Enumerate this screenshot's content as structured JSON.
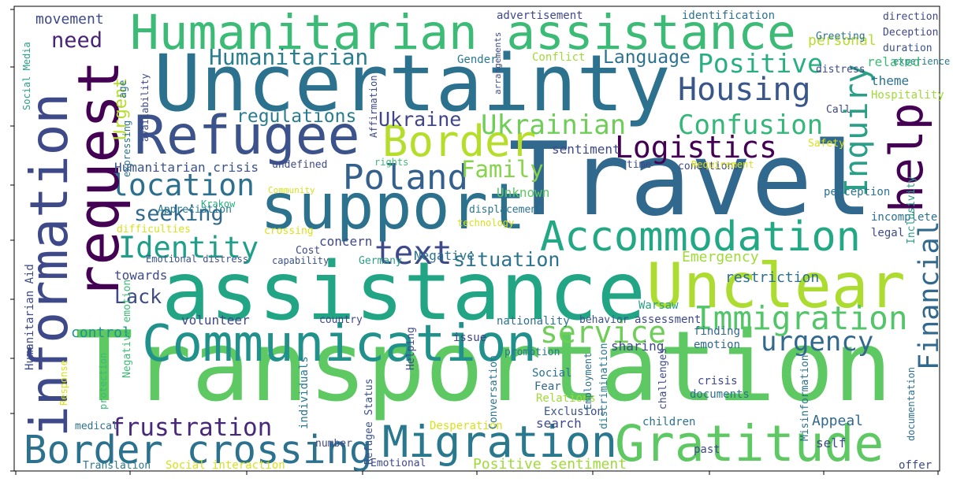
{
  "chart_data": {
    "type": "wordcloud",
    "words": [
      {
        "text": "Uncertainty",
        "color": "#2c728e"
      },
      {
        "text": "Transportation",
        "color": "#5ec962"
      },
      {
        "text": "assistance",
        "color": "#21a585"
      },
      {
        "text": "Travel",
        "color": "#31688e"
      },
      {
        "text": "Humanitarian assistance",
        "color": "#3bbb75"
      },
      {
        "text": "Refugee",
        "color": "#3b528b"
      },
      {
        "text": "support",
        "color": "#2c728e"
      },
      {
        "text": "Gratitude",
        "color": "#5ec962"
      },
      {
        "text": "Unclear",
        "color": "#addc30"
      },
      {
        "text": "Communication",
        "color": "#21918c"
      },
      {
        "text": "Accommodation",
        "color": "#22a884"
      },
      {
        "text": "Migration",
        "color": "#2a788e"
      },
      {
        "text": "Border crossing",
        "color": "#2c728e"
      },
      {
        "text": "Immigration",
        "color": "#52c569"
      },
      {
        "text": "Border",
        "color": "#b5de2b"
      },
      {
        "text": "Poland",
        "color": "#34608d"
      },
      {
        "text": "location",
        "color": "#2d708e"
      },
      {
        "text": "Identity",
        "color": "#1f9e89"
      },
      {
        "text": "text",
        "color": "#3e4989"
      },
      {
        "text": "Logistics",
        "color": "#440154"
      },
      {
        "text": "Confusion",
        "color": "#35b779"
      },
      {
        "text": "Housing",
        "color": "#39568c"
      },
      {
        "text": "Positive",
        "color": "#29af7f"
      },
      {
        "text": "Ukrainian",
        "color": "#6ece58"
      },
      {
        "text": "service",
        "color": "#6ece58"
      },
      {
        "text": "urgency",
        "color": "#31688e"
      },
      {
        "text": "frustration",
        "color": "#482878"
      },
      {
        "text": "Family",
        "color": "#86d549"
      },
      {
        "text": "seeking",
        "color": "#31688e"
      },
      {
        "text": "need",
        "color": "#482475"
      },
      {
        "text": "Humanitarian",
        "color": "#287d8e"
      },
      {
        "text": "Language",
        "color": "#2c728e"
      },
      {
        "text": "regulations",
        "color": "#287c8e"
      },
      {
        "text": "Ukraine",
        "color": "#404688"
      },
      {
        "text": "Lack",
        "color": "#3e4a89"
      },
      {
        "text": "situation",
        "color": "#2c738e"
      },
      {
        "text": "information",
        "color": "#3e4989"
      },
      {
        "text": "request",
        "color": "#440154"
      },
      {
        "text": "Urgent",
        "color": "#b5de2b"
      },
      {
        "text": "Inquiry",
        "color": "#2a9f88"
      },
      {
        "text": "help",
        "color": "#440154"
      },
      {
        "text": "Financial",
        "color": "#31688e"
      },
      {
        "text": "Emergency",
        "color": "#a0da39"
      },
      {
        "text": "restriction",
        "color": "#2e6e8e"
      },
      {
        "text": "Unknown",
        "color": "#5ec962"
      },
      {
        "text": "sentiment",
        "color": "#3e4989"
      },
      {
        "text": "Humanitarian crisis",
        "color": "#3b528b"
      },
      {
        "text": "movement",
        "color": "#3e4989"
      },
      {
        "text": "advertisement",
        "color": "#3e4989"
      },
      {
        "text": "identification",
        "color": "#2c728e"
      },
      {
        "text": "personal",
        "color": "#b5de2b"
      },
      {
        "text": "direction",
        "color": "#3e4989"
      },
      {
        "text": "Deception",
        "color": "#404688"
      },
      {
        "text": "Greeting",
        "color": "#2c728e"
      },
      {
        "text": "duration",
        "color": "#3b528b"
      },
      {
        "text": "experience",
        "color": "#2a788e"
      },
      {
        "text": "related",
        "color": "#3bbb75"
      },
      {
        "text": "theme",
        "color": "#2c728e"
      },
      {
        "text": "Hospitality",
        "color": "#a0da39"
      },
      {
        "text": "distress",
        "color": "#3e4989"
      },
      {
        "text": "Conflict",
        "color": "#a0da39"
      },
      {
        "text": "Gender",
        "color": "#2a788e"
      },
      {
        "text": "Positive sentiment",
        "color": "#a0da39"
      },
      {
        "text": "Desperation",
        "color": "#d8e219"
      },
      {
        "text": "Appeal",
        "color": "#31688e"
      },
      {
        "text": "self",
        "color": "#3e4989"
      },
      {
        "text": "offer",
        "color": "#3e4989"
      },
      {
        "text": "past",
        "color": "#3e4989"
      },
      {
        "text": "children",
        "color": "#2c728e"
      },
      {
        "text": "documents",
        "color": "#2c728e"
      },
      {
        "text": "crisis",
        "color": "#3e4989"
      },
      {
        "text": "Exclusion",
        "color": "#3b528b"
      },
      {
        "text": "Relations",
        "color": "#a0da39"
      },
      {
        "text": "Fear",
        "color": "#31688e"
      },
      {
        "text": "Social",
        "color": "#2c728e"
      },
      {
        "text": "promotion",
        "color": "#2a788e"
      },
      {
        "text": "issue",
        "color": "#404688"
      },
      {
        "text": "sharing",
        "color": "#3e4989"
      },
      {
        "text": "emotion",
        "color": "#31688e"
      },
      {
        "text": "finding",
        "color": "#31688e"
      },
      {
        "text": "assessment",
        "color": "#3e4989"
      },
      {
        "text": "behavior",
        "color": "#3b528b"
      },
      {
        "text": "nationality",
        "color": "#2c728e"
      },
      {
        "text": "Warsaw",
        "color": "#2a9f88"
      },
      {
        "text": "volunteer",
        "color": "#3e4989"
      },
      {
        "text": "country",
        "color": "#3e4989"
      },
      {
        "text": "control",
        "color": "#21918c"
      },
      {
        "text": "towards",
        "color": "#3e4989"
      },
      {
        "text": "Emotional distress",
        "color": "#3b528b"
      },
      {
        "text": "capability",
        "color": "#3b528b"
      },
      {
        "text": "Cost",
        "color": "#3e4989"
      },
      {
        "text": "concern",
        "color": "#3e4989"
      },
      {
        "text": "Germany",
        "color": "#2a9f88"
      },
      {
        "text": "Negative",
        "color": "#2c728e"
      },
      {
        "text": "crossing",
        "color": "#d8e219"
      },
      {
        "text": "difficulties",
        "color": "#d8e219"
      },
      {
        "text": "Krakow",
        "color": "#29af7f"
      },
      {
        "text": "Appreciation",
        "color": "#2a788e"
      },
      {
        "text": "Community",
        "color": "#d8e219"
      },
      {
        "text": "undefined",
        "color": "#3e4989"
      },
      {
        "text": "rights",
        "color": "#3bbb75"
      },
      {
        "text": "displacement",
        "color": "#2c728e"
      },
      {
        "text": "technology",
        "color": "#d8e219"
      },
      {
        "text": "time",
        "color": "#3e4989"
      },
      {
        "text": "conditions",
        "color": "#3e4989"
      },
      {
        "text": "perception",
        "color": "#2c728e"
      },
      {
        "text": "incomplete",
        "color": "#2c728e"
      },
      {
        "text": "legal",
        "color": "#3e4989"
      },
      {
        "text": "Safety",
        "color": "#d8e219"
      },
      {
        "text": "Call",
        "color": "#3e4989"
      },
      {
        "text": "Requirement",
        "color": "#d8e219"
      },
      {
        "text": "Social interaction",
        "color": "#d8e219"
      },
      {
        "text": "Translation",
        "color": "#2a788e"
      },
      {
        "text": "Emotional",
        "color": "#3e4989"
      },
      {
        "text": "search",
        "color": "#3e4989"
      },
      {
        "text": "number",
        "color": "#3e4989"
      },
      {
        "text": "medical",
        "color": "#2c728e"
      },
      {
        "text": "Humanitarian Aid",
        "color": "#3e4989"
      },
      {
        "text": "Negative emotion",
        "color": "#3bbb75"
      },
      {
        "text": "Refugee Status",
        "color": "#3b528b"
      },
      {
        "text": "individuals",
        "color": "#2a788e"
      },
      {
        "text": "Helping",
        "color": "#3e4989"
      },
      {
        "text": "discrimination",
        "color": "#2a788e"
      },
      {
        "text": "challenges",
        "color": "#3e4989"
      },
      {
        "text": "Misinformation",
        "color": "#2c728e"
      },
      {
        "text": "documentation",
        "color": "#2c728e"
      },
      {
        "text": "Employment",
        "color": "#2c728e"
      },
      {
        "text": "availability",
        "color": "#3e4989"
      },
      {
        "text": "expressing",
        "color": "#2c728e"
      },
      {
        "text": "Social Media",
        "color": "#2a9f88"
      },
      {
        "text": "Affirmation",
        "color": "#3e4989"
      },
      {
        "text": "protection",
        "color": "#3bbb75"
      },
      {
        "text": "Response",
        "color": "#d8e219"
      },
      {
        "text": "Inclusivity",
        "color": "#2a9f88"
      },
      {
        "text": "Conversation",
        "color": "#2c728e"
      },
      {
        "text": "arrangements",
        "color": "#3e4989"
      },
      {
        "text": "age",
        "color": "#2c728e"
      }
    ]
  }
}
